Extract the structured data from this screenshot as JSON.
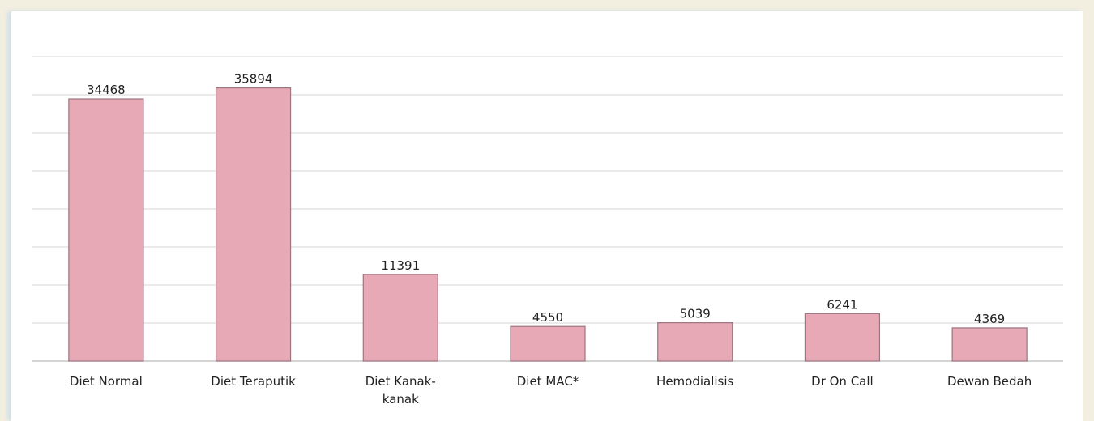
{
  "chart_data": {
    "type": "bar",
    "categories": [
      "Diet Normal",
      "Diet Teraputik",
      "Diet Kanak-kanak",
      "Diet MAC*",
      "Hemodialisis",
      "Dr On Call",
      "Dewan Bedah"
    ],
    "values": [
      34468,
      35894,
      11391,
      4550,
      5039,
      6241,
      4369
    ],
    "color": "#e6a9b5",
    "ylim": [
      0,
      40000
    ],
    "yticks": [
      0,
      5000,
      10000,
      15000,
      20000,
      25000,
      30000,
      35000,
      40000
    ],
    "grid": true
  }
}
